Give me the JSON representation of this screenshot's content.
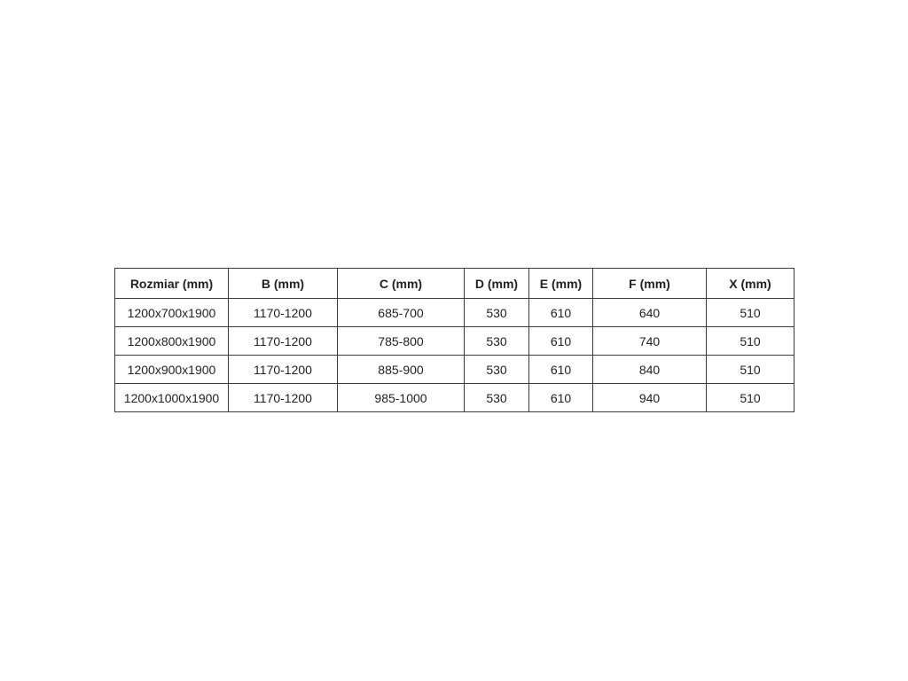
{
  "table": {
    "headers": [
      "Rozmiar (mm)",
      "B (mm)",
      "C (mm)",
      "D (mm)",
      "E (mm)",
      "F (mm)",
      "X (mm)"
    ],
    "rows": [
      [
        "1200x700x1900",
        "1170-1200",
        "685-700",
        "530",
        "610",
        "640",
        "510"
      ],
      [
        "1200x800x1900",
        "1170-1200",
        "785-800",
        "530",
        "610",
        "740",
        "510"
      ],
      [
        "1200x900x1900",
        "1170-1200",
        "885-900",
        "530",
        "610",
        "840",
        "510"
      ],
      [
        "1200x1000x1900",
        "1170-1200",
        "985-1000",
        "530",
        "610",
        "940",
        "510"
      ]
    ]
  }
}
